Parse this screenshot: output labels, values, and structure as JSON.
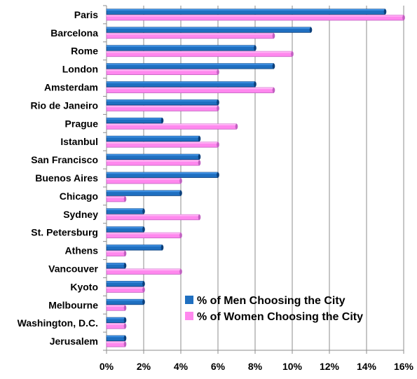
{
  "chart_data": {
    "type": "bar",
    "orientation": "horizontal",
    "categories": [
      "Paris",
      "Barcelona",
      "Rome",
      "London",
      "Amsterdam",
      "Rio de Janeiro",
      "Prague",
      "Istanbul",
      "San Francisco",
      "Buenos Aires",
      "Chicago",
      "Sydney",
      "St. Petersburg",
      "Athens",
      "Vancouver",
      "Kyoto",
      "Melbourne",
      "Washington, D.C.",
      "Jerusalem"
    ],
    "series": [
      {
        "name": "% of Men Choosing the City",
        "color": "#1f6fc0",
        "values": [
          15,
          11,
          8,
          9,
          8,
          6,
          3,
          5,
          5,
          6,
          4,
          2,
          2,
          3,
          1,
          2,
          2,
          1,
          1
        ]
      },
      {
        "name": "% of Women Choosing the City",
        "color": "#ff88ee",
        "values": [
          16,
          9,
          10,
          6,
          9,
          6,
          7,
          6,
          5,
          4,
          1,
          5,
          4,
          1,
          4,
          2,
          1,
          1,
          1
        ]
      }
    ],
    "xlim": [
      0,
      16
    ],
    "xticks": [
      0,
      2,
      4,
      6,
      8,
      10,
      12,
      14,
      16
    ],
    "xtick_labels": [
      "0%",
      "2%",
      "4%",
      "6%",
      "8%",
      "10%",
      "12%",
      "14%",
      "16%"
    ],
    "grid": true,
    "legend_position": "bottom-right"
  }
}
